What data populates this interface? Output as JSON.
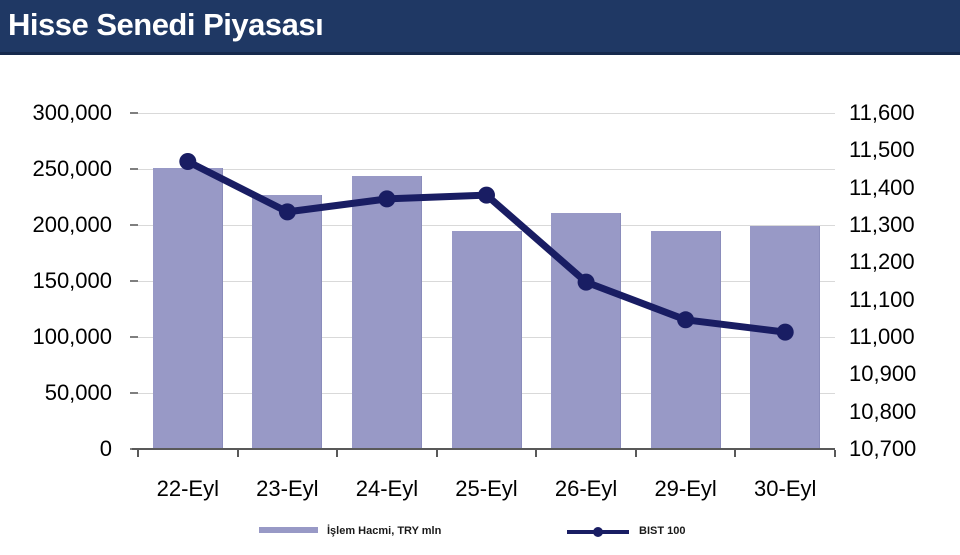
{
  "header": {
    "title": "Hisse Senedi Piyasası"
  },
  "legend": {
    "bar_label": "İşlem Hacmi, TRY mln",
    "line_label": "BIST 100"
  },
  "colors": {
    "title_bar_bg": "#1F3864",
    "title_text": "#FFFFFF",
    "bar_fill": "#9899C6",
    "bar_edge": "#8A8CBB",
    "line_color": "#191D63",
    "gridline": "#D9D9D9",
    "axis_line": "#595959",
    "tick_color": "#7F7F7F",
    "axis_text": "#000000"
  },
  "chart_data": {
    "type": "bar",
    "subtype": "combo-bar-line-dual-axis",
    "title": "Hisse Senedi Piyasası",
    "xlabel": "",
    "ylabel_left": "",
    "ylabel_right": "",
    "grid": true,
    "legend_position": "bottom",
    "categories": [
      "22-Eyl",
      "23-Eyl",
      "24-Eyl",
      "25-Eyl",
      "26-Eyl",
      "29-Eyl",
      "30-Eyl"
    ],
    "series": [
      {
        "name": "İşlem Hacmi, TRY mln",
        "type": "bar",
        "axis": "left",
        "values": [
          251000,
          227000,
          244000,
          195000,
          211000,
          195000,
          199000
        ]
      },
      {
        "name": "BIST 100",
        "type": "line",
        "axis": "right",
        "values": [
          11470,
          11335,
          11370,
          11380,
          11147,
          11046,
          11013
        ]
      }
    ],
    "left_axis": {
      "min": 0,
      "max": 300000,
      "step": 50000,
      "tick_labels": [
        "300,000",
        "250,000",
        "200,000",
        "150,000",
        "100,000",
        "50,000",
        "0"
      ]
    },
    "right_axis": {
      "min": 10700,
      "max": 11600,
      "step": 100,
      "tick_labels": [
        "11,600",
        "11,500",
        "11,400",
        "11,300",
        "11,200",
        "11,100",
        "11,000",
        "10,900",
        "10,800",
        "10,700"
      ]
    }
  }
}
